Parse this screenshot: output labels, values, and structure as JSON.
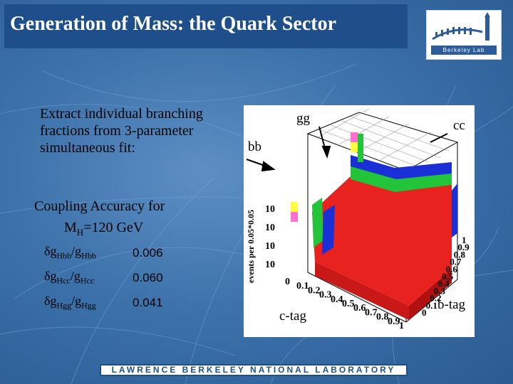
{
  "slide": {
    "title": "Generation of Mass: the Quark Sector",
    "logo_text": "Berkeley Lab",
    "intro_text": "Extract individual branching fractions from 3-parameter simultaneous fit:",
    "coupling_title": "Coupling Accuracy for",
    "coupling_mass_prefix": "M",
    "coupling_mass_sub": "H",
    "coupling_mass_value": "=120 GeV",
    "footer": "LAWRENCE BERKELEY NATIONAL LABORATORY"
  },
  "accuracy_table": [
    {
      "delta": "δ",
      "g1": "g",
      "s1": "Hbb",
      "slash": "/",
      "g2": "g",
      "s2": "Hbb",
      "value": "0.006"
    },
    {
      "delta": "δ",
      "g1": "g",
      "s1": "Hcc",
      "slash": "/",
      "g2": "g",
      "s2": "Hcc",
      "value": "0.060"
    },
    {
      "delta": "δ",
      "g1": "g",
      "s1": "Hgg",
      "slash": "/",
      "g2": "g",
      "s2": "Hgg",
      "value": "0.041"
    }
  ],
  "figure": {
    "label_gg": "gg",
    "label_cc": "cc",
    "label_bb": "bb",
    "label_ctag": "c-tag",
    "label_btag": "b-tag",
    "zaxis_label": "events per 0.05*0.05",
    "z_ticks": [
      "10",
      "10",
      "10",
      "10"
    ],
    "x_ticks": [
      "0",
      "0.1",
      "0.2",
      "0.3",
      "0.4",
      "0.5",
      "0.6",
      "0.7",
      "0.8",
      "0.9",
      "1"
    ],
    "y_ticks": [
      "0",
      "0.1",
      "0.2",
      "0.3",
      "0.4",
      "0.5",
      "0.6",
      "0.7",
      "0.8",
      "0.9",
      "1"
    ],
    "colors": {
      "red": "#e8221e",
      "green": "#22c43a",
      "blue": "#1a2fd6",
      "yellow": "#ffff40",
      "pink": "#ff70d0"
    }
  }
}
